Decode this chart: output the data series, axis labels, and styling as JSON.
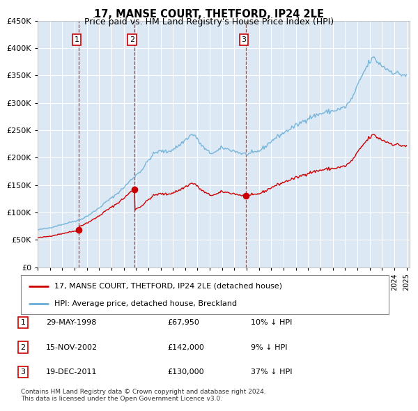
{
  "title": "17, MANSE COURT, THETFORD, IP24 2LE",
  "subtitle": "Price paid vs. HM Land Registry's House Price Index (HPI)",
  "background_color": "#ffffff",
  "plot_bg_color": "#dce9f5",
  "grid_color": "#b8cfe8",
  "ylim": [
    0,
    450000
  ],
  "yticks": [
    0,
    50000,
    100000,
    150000,
    200000,
    250000,
    300000,
    350000,
    400000,
    450000
  ],
  "ytick_labels": [
    "£0",
    "£50K",
    "£100K",
    "£150K",
    "£200K",
    "£250K",
    "£300K",
    "£350K",
    "£400K",
    "£450K"
  ],
  "sale_dates_decimal": [
    1998.37,
    2002.87,
    2011.96
  ],
  "sale_prices": [
    67950,
    142000,
    130000
  ],
  "sale_labels": [
    "1",
    "2",
    "3"
  ],
  "hpi_line_color": "#6baed6",
  "sale_line_color": "#cc0000",
  "vline_color": "#cc0000",
  "legend_property": "17, MANSE COURT, THETFORD, IP24 2LE (detached house)",
  "legend_hpi": "HPI: Average price, detached house, Breckland",
  "table_rows": [
    [
      "1",
      "29-MAY-1998",
      "£67,950",
      "10% ↓ HPI"
    ],
    [
      "2",
      "15-NOV-2002",
      "£142,000",
      "9% ↓ HPI"
    ],
    [
      "3",
      "19-DEC-2011",
      "£130,000",
      "37% ↓ HPI"
    ]
  ],
  "footer": "Contains HM Land Registry data © Crown copyright and database right 2024.\nThis data is licensed under the Open Government Licence v3.0.",
  "xlim_start": 1995.0,
  "xlim_end": 2025.25
}
